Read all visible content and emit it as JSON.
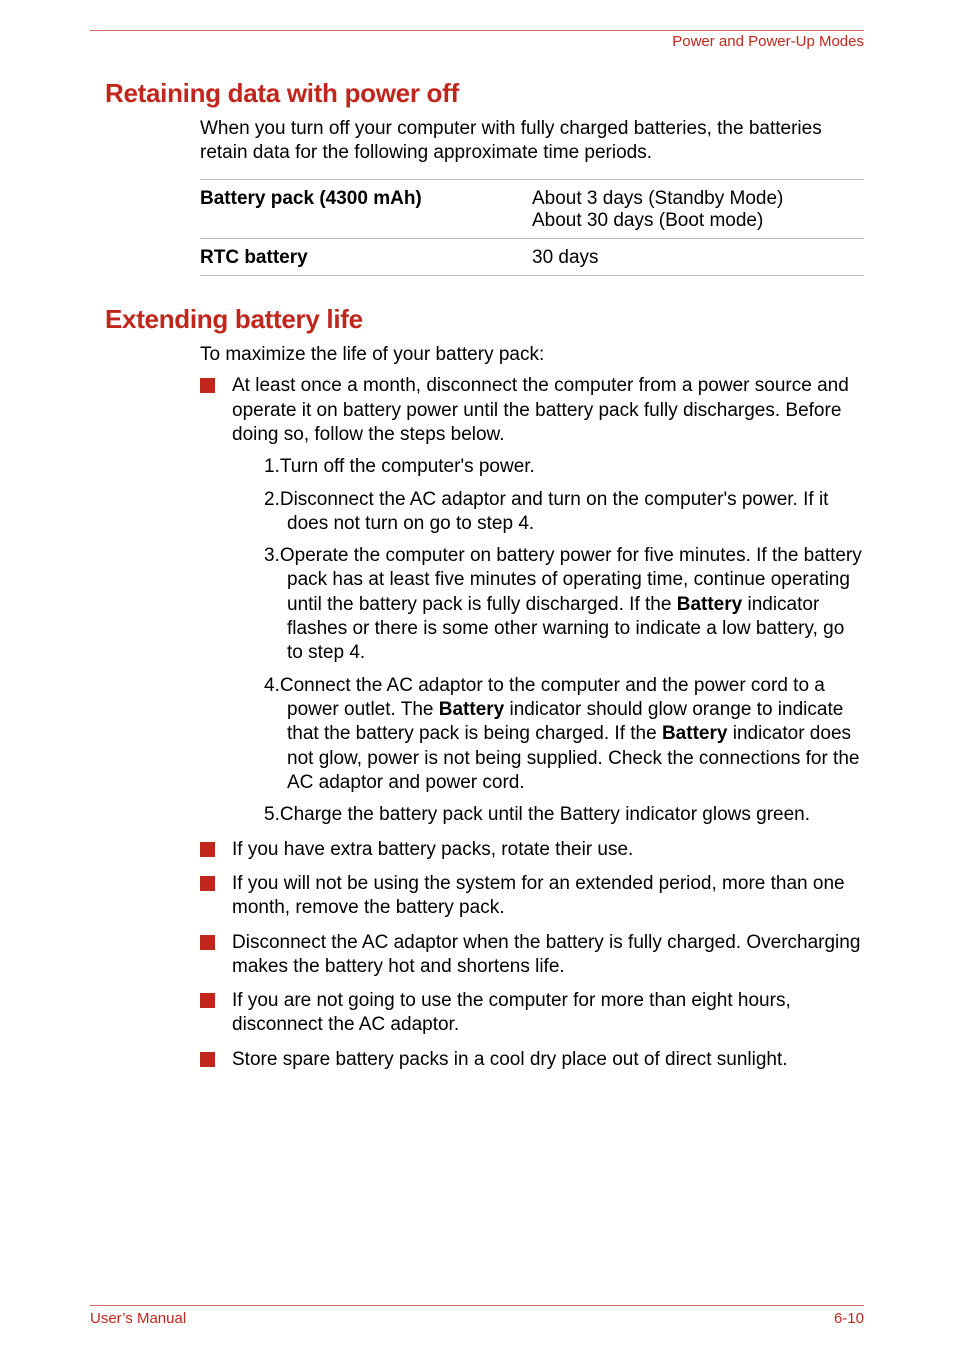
{
  "header": {
    "section_title": "Power and Power-Up Modes"
  },
  "section1": {
    "heading": "Retaining data with power off",
    "intro": "When you turn off your computer with fully charged batteries, the batteries retain data for the following approximate time periods.",
    "table": {
      "rows": [
        {
          "k": "Battery pack (4300 mAh)",
          "v1": "About 3 days (Standby Mode)",
          "v2": "About 30 days (Boot mode)"
        },
        {
          "k": "RTC battery",
          "v1": "30 days",
          "v2": ""
        }
      ]
    }
  },
  "section2": {
    "heading": "Extending battery life",
    "intro": "To maximize the life of your battery pack:",
    "bullet1_text": "At least once a month, disconnect the computer from a power source and operate it on battery power until the battery pack fully discharges. Before doing so, follow the steps below.",
    "steps": {
      "s1": "1.Turn off the computer's power.",
      "s2": "2.Disconnect the AC adaptor and turn on the computer's power. If it does not turn on go to step 4.",
      "s3_a": "3.Operate the computer on battery power for five minutes. If the battery pack has at least five minutes of operating time, continue operating until the battery pack is fully discharged. If the ",
      "s3_b": "Battery",
      "s3_c": " indicator flashes or there is some other warning to indicate a low battery, go to step 4.",
      "s4_a": "4.Connect the AC adaptor to the computer and the power cord to a power outlet. The ",
      "s4_b": "Battery",
      "s4_c": " indicator should glow orange to indicate that the battery pack is being charged. If the ",
      "s4_d": "Battery",
      "s4_e": " indicator does not glow, power is not being supplied. Check the connections for the AC adaptor and power cord.",
      "s5": "5.Charge the battery pack until the Battery indicator glows green."
    },
    "bullets_rest": [
      "If you have extra battery packs, rotate their use.",
      "If you will not be using the system for an extended period, more than one month, remove the battery pack.",
      "Disconnect the AC adaptor when the battery is fully charged. Overcharging makes the battery hot and shortens life.",
      "If you are not going to use the computer for more than eight hours, disconnect the AC adaptor.",
      "Store spare battery packs in a cool dry place out of direct sunlight."
    ]
  },
  "footer": {
    "left": "User’s Manual",
    "right": "6-10"
  },
  "style": {
    "accent": "#c1261c"
  }
}
